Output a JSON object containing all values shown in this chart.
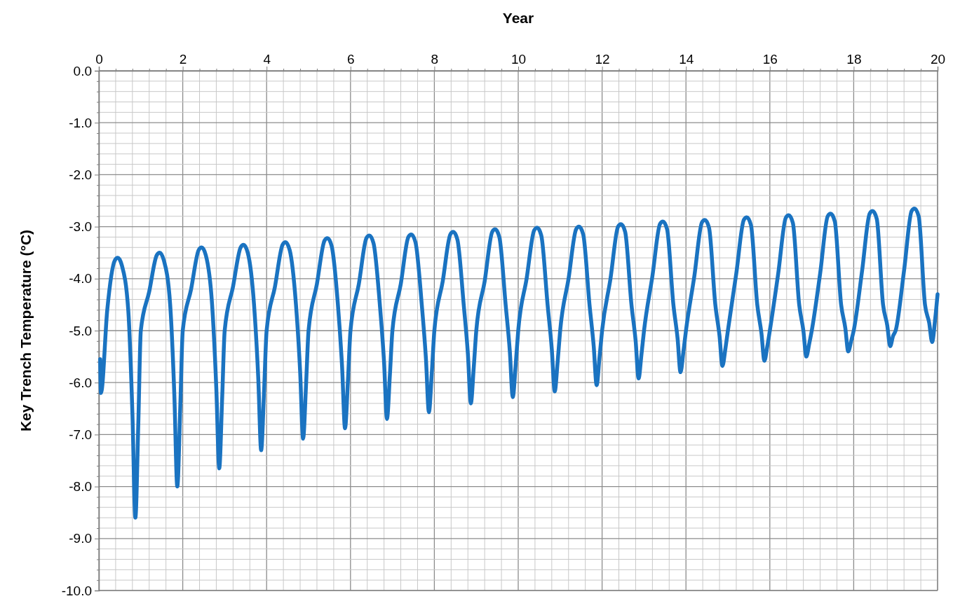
{
  "chart_data": {
    "type": "line",
    "xlabel": "Year",
    "ylabel": "Key Trench Temperature (°C)",
    "grid": true,
    "marker": "none",
    "line_style": "solid",
    "xlim": [
      0,
      20
    ],
    "ylim": [
      -10,
      0
    ],
    "xticks": [
      0,
      {
        "value": 0.4,
        "label": null
      },
      {
        "value": 0.8,
        "label": null
      },
      {
        "value": 1.2,
        "label": null
      },
      {
        "value": 1.6,
        "label": null
      },
      2,
      {
        "value": 2.4,
        "label": null
      },
      {
        "value": 2.8,
        "label": null
      },
      {
        "value": 3.2,
        "label": null
      },
      {
        "value": 3.6,
        "label": null
      },
      4,
      {
        "value": 4.4,
        "label": null
      },
      {
        "value": 4.8,
        "label": null
      },
      {
        "value": 5.2,
        "label": null
      },
      {
        "value": 5.6,
        "label": null
      },
      6,
      {
        "value": 6.4,
        "label": null
      },
      {
        "value": 6.8,
        "label": null
      },
      {
        "value": 7.2,
        "label": null
      },
      {
        "value": 7.6,
        "label": null
      },
      8,
      {
        "value": 8.4,
        "label": null
      },
      {
        "value": 8.8,
        "label": null
      },
      {
        "value": 9.2,
        "label": null
      },
      {
        "value": 9.6,
        "label": null
      },
      10,
      {
        "value": 10.4,
        "label": null
      },
      {
        "value": 10.8,
        "label": null
      },
      {
        "value": 11.2,
        "label": null
      },
      {
        "value": 11.6,
        "label": null
      },
      12,
      {
        "value": 12.4,
        "label": null
      },
      {
        "value": 12.8,
        "label": null
      },
      {
        "value": 13.2,
        "label": null
      },
      {
        "value": 13.6,
        "label": null
      },
      14,
      {
        "value": 14.4,
        "label": null
      },
      {
        "value": 14.8,
        "label": null
      },
      {
        "value": 15.2,
        "label": null
      },
      {
        "value": 15.6,
        "label": null
      },
      16,
      {
        "value": 16.4,
        "label": null
      },
      {
        "value": 16.8,
        "label": null
      },
      {
        "value": 17.2,
        "label": null
      },
      {
        "value": 17.6,
        "label": null
      },
      18,
      {
        "value": 18.4,
        "label": null
      },
      {
        "value": 18.8,
        "label": null
      },
      {
        "value": 19.2,
        "label": null
      },
      {
        "value": 19.6,
        "label": null
      },
      20
    ],
    "yticks": [
      {
        "value": -10,
        "label": "-10.0"
      },
      {
        "value": -9.8,
        "label": null
      },
      {
        "value": -9.6,
        "label": null
      },
      {
        "value": -9.4,
        "label": null
      },
      {
        "value": -9.2,
        "label": null
      },
      {
        "value": -9,
        "label": "-9.0"
      },
      {
        "value": -8.8,
        "label": null
      },
      {
        "value": -8.6,
        "label": null
      },
      {
        "value": -8.4,
        "label": null
      },
      {
        "value": -8.2,
        "label": null
      },
      {
        "value": -8,
        "label": "-8.0"
      },
      {
        "value": -7.8,
        "label": null
      },
      {
        "value": -7.6,
        "label": null
      },
      {
        "value": -7.4,
        "label": null
      },
      {
        "value": -7.2,
        "label": null
      },
      {
        "value": -7,
        "label": "-7.0"
      },
      {
        "value": -6.8,
        "label": null
      },
      {
        "value": -6.6,
        "label": null
      },
      {
        "value": -6.4,
        "label": null
      },
      {
        "value": -6.2,
        "label": null
      },
      {
        "value": -6,
        "label": "-6.0"
      },
      {
        "value": -5.8,
        "label": null
      },
      {
        "value": -5.6,
        "label": null
      },
      {
        "value": -5.4,
        "label": null
      },
      {
        "value": -5.2,
        "label": null
      },
      {
        "value": -5,
        "label": "-5.0"
      },
      {
        "value": -4.8,
        "label": null
      },
      {
        "value": -4.6,
        "label": null
      },
      {
        "value": -4.4,
        "label": null
      },
      {
        "value": -4.2,
        "label": null
      },
      {
        "value": -4,
        "label": "-4.0"
      },
      {
        "value": -3.8,
        "label": null
      },
      {
        "value": -3.6,
        "label": null
      },
      {
        "value": -3.4,
        "label": null
      },
      {
        "value": -3.2,
        "label": null
      },
      {
        "value": -3,
        "label": "-3.0"
      },
      {
        "value": -2.8,
        "label": null
      },
      {
        "value": -2.6,
        "label": null
      },
      {
        "value": -2.4,
        "label": null
      },
      {
        "value": -2.2,
        "label": null
      },
      {
        "value": -2,
        "label": "-2.0"
      },
      {
        "value": -1.8,
        "label": null
      },
      {
        "value": -1.6,
        "label": null
      },
      {
        "value": -1.4,
        "label": null
      },
      {
        "value": -1.2,
        "label": null
      },
      {
        "value": -1,
        "label": "-1.0"
      },
      {
        "value": -0.8,
        "label": null
      },
      {
        "value": -0.6,
        "label": null
      },
      {
        "value": -0.4,
        "label": null
      },
      {
        "value": -0.2,
        "label": null
      },
      {
        "value": 0,
        "label": "0.0"
      }
    ],
    "series": [
      {
        "color": "#1a73c1",
        "x": [
          0.03,
          0.05,
          0.2,
          0.38,
          0.45,
          0.55,
          0.7,
          0.8,
          0.87,
          0.94,
          1,
          1.2,
          1.38,
          1.45,
          1.55,
          1.7,
          1.8,
          1.87,
          1.94,
          2,
          2.2,
          2.38,
          2.45,
          2.55,
          2.7,
          2.8,
          2.87,
          2.94,
          3,
          3.2,
          3.38,
          3.45,
          3.55,
          3.7,
          3.8,
          3.87,
          3.94,
          4,
          4.2,
          4.38,
          4.45,
          4.55,
          4.7,
          4.8,
          4.87,
          4.94,
          5,
          5.2,
          5.38,
          5.45,
          5.55,
          5.7,
          5.8,
          5.87,
          5.94,
          6,
          6.2,
          6.38,
          6.45,
          6.55,
          6.7,
          6.8,
          6.87,
          6.94,
          7,
          7.2,
          7.38,
          7.45,
          7.55,
          7.7,
          7.8,
          7.87,
          7.94,
          8,
          8.2,
          8.38,
          8.45,
          8.55,
          8.7,
          8.8,
          8.87,
          8.94,
          9,
          9.2,
          9.38,
          9.45,
          9.55,
          9.7,
          9.8,
          9.87,
          9.94,
          10,
          10.2,
          10.38,
          10.45,
          10.55,
          10.7,
          10.8,
          10.87,
          10.94,
          11,
          11.2,
          11.38,
          11.45,
          11.55,
          11.7,
          11.8,
          11.87,
          11.94,
          12,
          12.2,
          12.38,
          12.45,
          12.55,
          12.7,
          12.8,
          12.87,
          12.94,
          13,
          13.2,
          13.38,
          13.45,
          13.55,
          13.7,
          13.8,
          13.87,
          13.94,
          14,
          14.2,
          14.38,
          14.45,
          14.55,
          14.7,
          14.8,
          14.87,
          14.94,
          15,
          15.2,
          15.38,
          15.45,
          15.55,
          15.7,
          15.8,
          15.87,
          15.94,
          16,
          16.2,
          16.38,
          16.45,
          16.55,
          16.7,
          16.8,
          16.87,
          16.94,
          17,
          17.2,
          17.38,
          17.45,
          17.55,
          17.7,
          17.8,
          17.87,
          17.94,
          18,
          18.2,
          18.38,
          18.45,
          18.55,
          18.7,
          18.8,
          18.87,
          18.94,
          19,
          19.2,
          19.38,
          19.45,
          19.55,
          19.7,
          19.8,
          19.87,
          19.94,
          20
        ],
        "values": [
          -5.55,
          -6.2,
          -4.6,
          -3.65,
          -3.6,
          -3.75,
          -4.6,
          -6.6,
          -8.6,
          -6.8,
          -5,
          -4.25,
          -3.55,
          -3.5,
          -3.65,
          -4.5,
          -6.25,
          -8,
          -6.5,
          -5,
          -4.2,
          -3.45,
          -3.4,
          -3.55,
          -4.5,
          -6.1,
          -7.65,
          -6.3,
          -5,
          -4.15,
          -3.4,
          -3.35,
          -3.5,
          -4.5,
          -5.9,
          -7.3,
          -6.15,
          -5,
          -4.15,
          -3.35,
          -3.3,
          -3.45,
          -4.5,
          -5.8,
          -7.08,
          -6.05,
          -5,
          -4.1,
          -3.27,
          -3.22,
          -3.37,
          -4.5,
          -5.7,
          -6.88,
          -5.95,
          -5,
          -4.1,
          -3.22,
          -3.17,
          -3.32,
          -4.5,
          -5.6,
          -6.7,
          -5.85,
          -5,
          -4.1,
          -3.2,
          -3.15,
          -3.3,
          -4.5,
          -5.55,
          -6.57,
          -5.8,
          -5,
          -4.05,
          -3.15,
          -3.1,
          -3.25,
          -4.5,
          -5.45,
          -6.4,
          -5.7,
          -5,
          -4.05,
          -3.1,
          -3.05,
          -3.2,
          -4.5,
          -5.4,
          -6.28,
          -5.65,
          -5,
          -4,
          -3.07,
          -3.02,
          -3.17,
          -4.5,
          -5.35,
          -6.17,
          -5.6,
          -5,
          -4,
          -3.05,
          -3,
          -3.15,
          -4.5,
          -5.3,
          -6.05,
          -5.5,
          -5,
          -4,
          -3,
          -2.95,
          -3.1,
          -4.5,
          -5.2,
          -5.92,
          -5.45,
          -5,
          -3.95,
          -2.95,
          -2.9,
          -3.05,
          -4.5,
          -5.15,
          -5.8,
          -5.4,
          -5,
          -3.95,
          -2.92,
          -2.87,
          -3.02,
          -4.5,
          -5.1,
          -5.68,
          -5.35,
          -5,
          -3.9,
          -2.87,
          -2.82,
          -2.97,
          -4.5,
          -5.05,
          -5.58,
          -5.3,
          -5,
          -3.9,
          -2.83,
          -2.78,
          -2.93,
          -4.5,
          -5,
          -5.5,
          -5.25,
          -5,
          -3.9,
          -2.8,
          -2.75,
          -2.9,
          -4.5,
          -4.95,
          -5.4,
          -5.2,
          -5,
          -3.85,
          -2.75,
          -2.7,
          -2.85,
          -4.5,
          -4.9,
          -5.3,
          -5.1,
          -5,
          -3.85,
          -2.7,
          -2.65,
          -2.8,
          -4.5,
          -4.85,
          -5.22,
          -4.8,
          -4.3
        ]
      }
    ]
  }
}
